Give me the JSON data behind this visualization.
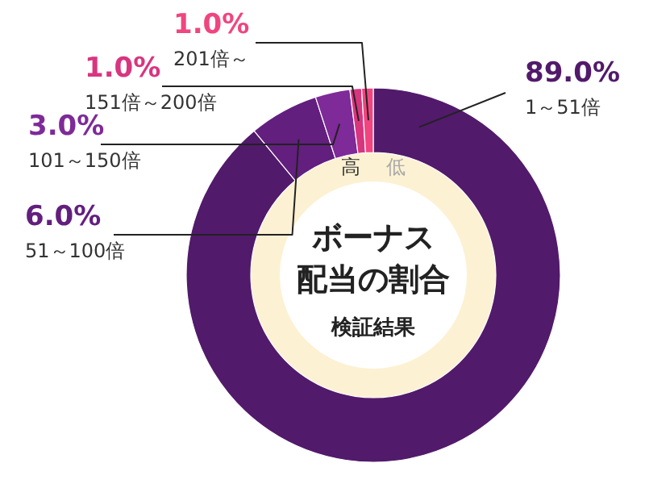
{
  "chart_data": {
    "type": "donut",
    "title": "ボーナス配当の割合",
    "subtitle": "検証結果",
    "categories": [
      "1～51倍",
      "51～100倍",
      "101～150倍",
      "151倍～200倍",
      "201倍～"
    ],
    "values": [
      89.0,
      6.0,
      3.0,
      1.0,
      1.0
    ],
    "value_labels": [
      "89.0%",
      "6.0%",
      "3.0%",
      "1.0%",
      "1.0%"
    ],
    "colors": [
      "#521a6b",
      "#621f7e",
      "#7e2a98",
      "#d8357f",
      "#f0457f"
    ],
    "annotations": [
      "高",
      "低"
    ]
  }
}
